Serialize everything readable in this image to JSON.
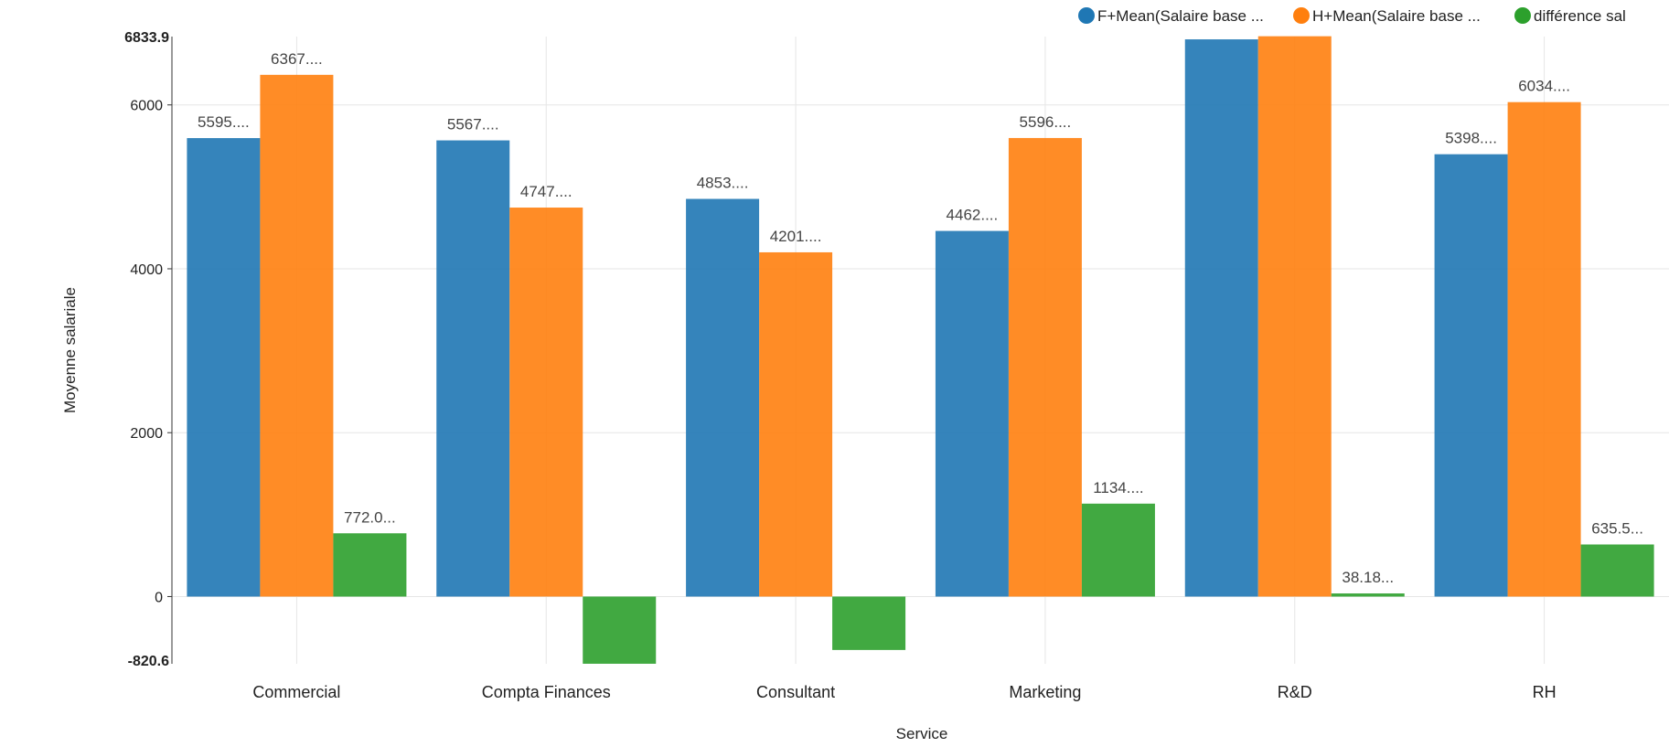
{
  "chart_data": {
    "type": "bar",
    "xlabel": "Service",
    "ylabel": "Moyenne salariale",
    "ylim": [
      -820.6,
      6833.9
    ],
    "y_min_label": "-820.6",
    "y_max_label": "6833.9",
    "y_ticks": [
      0,
      2000,
      4000,
      6000
    ],
    "y_tick_labels": [
      "0",
      "2000",
      "4000",
      "6000"
    ],
    "grid": true,
    "legend_position": "top-right",
    "categories": [
      "Commercial",
      "Compta Finances",
      "Consultant",
      "Marketing",
      "R&D",
      "RH"
    ],
    "series": [
      {
        "name": "F+Mean(Salaire base ...",
        "color": "#1f77b4",
        "values": [
          5595,
          5567,
          4853,
          4462,
          6800,
          5398
        ],
        "labels": [
          "5595....",
          "5567....",
          "4853....",
          "4462....",
          "",
          "5398...."
        ]
      },
      {
        "name": "H+Mean(Salaire base ...",
        "color": "#ff7f0e",
        "values": [
          6367,
          4747,
          4201,
          5596,
          6838,
          6034
        ],
        "labels": [
          "6367....",
          "4747....",
          "4201....",
          "5596....",
          "",
          "6034...."
        ]
      },
      {
        "name": "différence sal",
        "color": "#2ca02c",
        "values": [
          772,
          -820,
          -652,
          1134,
          38.18,
          635.5
        ],
        "labels": [
          "772.0...",
          "",
          "",
          "1134....",
          "38.18...",
          "635.5..."
        ]
      }
    ]
  }
}
